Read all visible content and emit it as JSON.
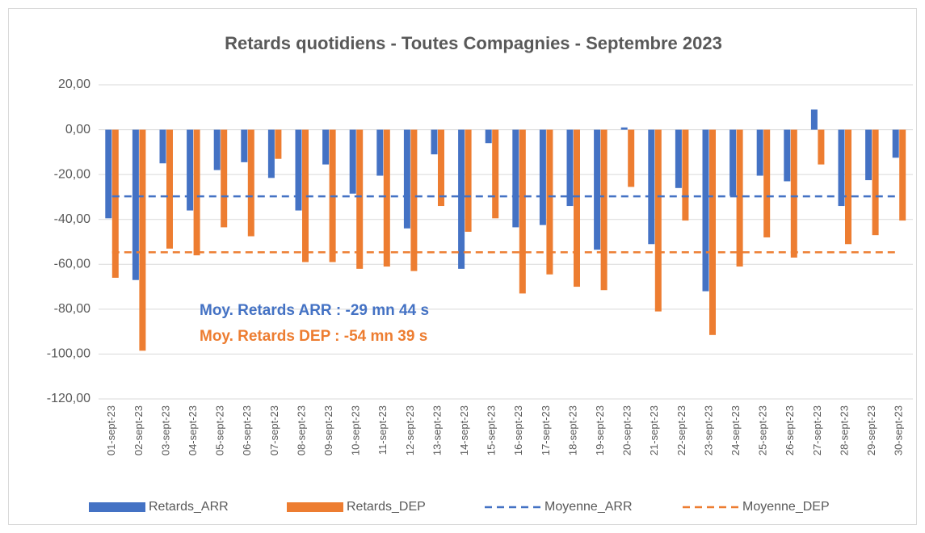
{
  "chart_data": {
    "type": "bar",
    "title": "Retards quotidiens - Toutes Compagnies - Septembre 2023",
    "categories": [
      "01-sept-23",
      "02-sept-23",
      "03-sept-23",
      "04-sept-23",
      "05-sept-23",
      "06-sept-23",
      "07-sept-23",
      "08-sept-23",
      "09-sept-23",
      "10-sept-23",
      "11-sept-23",
      "12-sept-23",
      "13-sept-23",
      "14-sept-23",
      "15-sept-23",
      "16-sept-23",
      "17-sept-23",
      "18-sept-23",
      "19-sept-23",
      "20-sept-23",
      "21-sept-23",
      "22-sept-23",
      "23-sept-23",
      "24-sept-23",
      "25-sept-23",
      "26-sept-23",
      "27-sept-23",
      "28-sept-23",
      "29-sept-23",
      "30-sept-23"
    ],
    "series": [
      {
        "name": "Retards_ARR",
        "color": "#4472c4",
        "kind": "bar",
        "values": [
          -39.5,
          -67,
          -15,
          -36,
          -18,
          -14.5,
          -21.5,
          -36,
          -15.5,
          -28.5,
          -20.5,
          -44,
          -11,
          -62,
          -6,
          -43.5,
          -42.5,
          -34,
          -53.5,
          1,
          -51,
          -26,
          -72,
          -29.5,
          -20.5,
          -23,
          9,
          -34,
          -22.5,
          -12.5
        ]
      },
      {
        "name": "Retards_DEP",
        "color": "#ed7d31",
        "kind": "bar",
        "values": [
          -66,
          -98.5,
          -53,
          -56,
          -43.5,
          -47.5,
          -13,
          -59,
          -59,
          -62,
          -61,
          -63,
          -34,
          -45.5,
          -39.5,
          -73,
          -64.5,
          -70,
          -71.5,
          -25.5,
          -81,
          -40.5,
          -91.5,
          -61,
          -48,
          -57,
          -15.5,
          -51,
          -47,
          -40.5
        ]
      },
      {
        "name": "Moyenne_ARR",
        "color": "#4472c4",
        "kind": "line",
        "dashed": true,
        "values": [
          -29.73,
          -29.73,
          -29.73,
          -29.73,
          -29.73,
          -29.73,
          -29.73,
          -29.73,
          -29.73,
          -29.73,
          -29.73,
          -29.73,
          -29.73,
          -29.73,
          -29.73,
          -29.73,
          -29.73,
          -29.73,
          -29.73,
          -29.73,
          -29.73,
          -29.73,
          -29.73,
          -29.73,
          -29.73,
          -29.73,
          -29.73,
          -29.73,
          -29.73,
          -29.73
        ]
      },
      {
        "name": "Moyenne_DEP",
        "color": "#ed7d31",
        "kind": "line",
        "dashed": true,
        "values": [
          -54.65,
          -54.65,
          -54.65,
          -54.65,
          -54.65,
          -54.65,
          -54.65,
          -54.65,
          -54.65,
          -54.65,
          -54.65,
          -54.65,
          -54.65,
          -54.65,
          -54.65,
          -54.65,
          -54.65,
          -54.65,
          -54.65,
          -54.65,
          -54.65,
          -54.65,
          -54.65,
          -54.65,
          -54.65,
          -54.65,
          -54.65,
          -54.65,
          -54.65,
          -54.65
        ]
      }
    ],
    "annotations": [
      {
        "text": "Moy. Retards ARR : -29 mn 44 s",
        "color": "#4472c4"
      },
      {
        "text": "Moy. Retards DEP : -54 mn 39 s",
        "color": "#ed7d31"
      }
    ],
    "ylim": [
      -120,
      20
    ],
    "yticks": [
      {
        "value": -120,
        "label": "-120,00"
      },
      {
        "value": -100,
        "label": "-100,00"
      },
      {
        "value": -80,
        "label": "-80,00"
      },
      {
        "value": -60,
        "label": "-60,00"
      },
      {
        "value": -40,
        "label": "-40,00"
      },
      {
        "value": -20,
        "label": "-20,00"
      },
      {
        "value": 0,
        "label": "0,00"
      },
      {
        "value": 20,
        "label": "20,00"
      }
    ],
    "grid": true,
    "legend": "bottom"
  }
}
